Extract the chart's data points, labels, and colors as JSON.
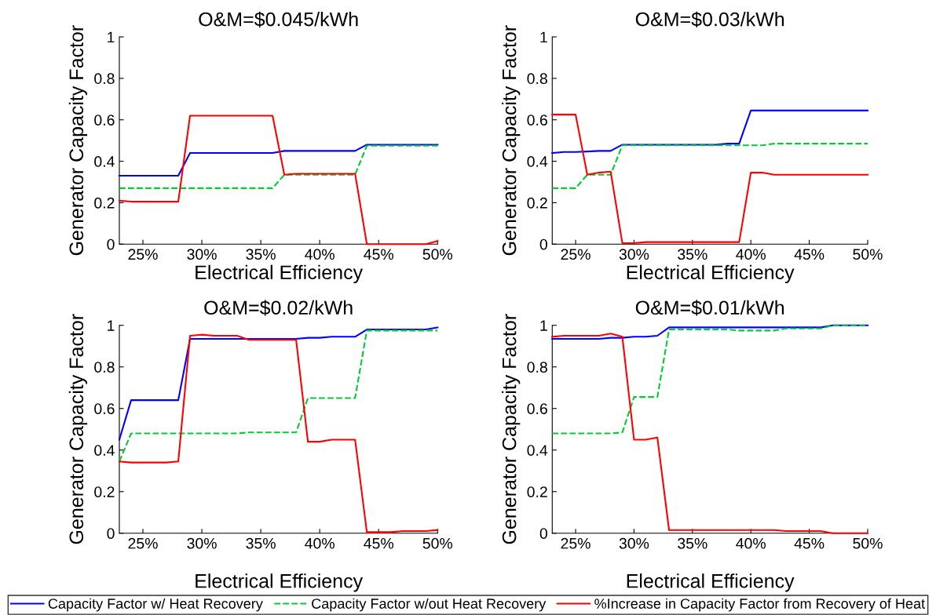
{
  "chart_data": [
    {
      "type": "line",
      "title": "O&M=$0.045/kWh",
      "xlabel": "Electrical Efficiency",
      "ylabel": "Generator Capacity Factor",
      "legend": "bottom",
      "x": [
        23,
        24,
        25,
        26,
        27,
        28,
        29,
        30,
        31,
        32,
        33,
        34,
        35,
        36,
        37,
        38,
        39,
        40,
        41,
        42,
        43,
        44,
        45,
        46,
        47,
        48,
        49,
        50
      ],
      "xlim": [
        23,
        50
      ],
      "xticks": [
        {
          "value": 25,
          "label": "25%"
        },
        {
          "value": 30,
          "label": "30%"
        },
        {
          "value": 35,
          "label": "35%"
        },
        {
          "value": 40,
          "label": "40%"
        },
        {
          "value": 45,
          "label": "45%"
        },
        {
          "value": 50,
          "label": "50%"
        }
      ],
      "ylim": [
        0,
        1
      ],
      "yticks": [
        0,
        0.2,
        0.4,
        0.6,
        0.8,
        1
      ],
      "series": [
        {
          "name": "Capacity Factor w/ Heat Recovery",
          "color": "#0000ff",
          "line_style": "solid",
          "values": [
            0.33,
            0.33,
            0.33,
            0.33,
            0.33,
            0.33,
            0.44,
            0.44,
            0.44,
            0.44,
            0.44,
            0.44,
            0.44,
            0.44,
            0.45,
            0.45,
            0.45,
            0.45,
            0.45,
            0.45,
            0.45,
            0.48,
            0.48,
            0.48,
            0.48,
            0.48,
            0.48,
            0.48
          ]
        },
        {
          "name": "Capacity Factor w/out Heat Recovery",
          "color": "#00cc33",
          "line_style": "dashed",
          "values": [
            0.27,
            0.27,
            0.27,
            0.27,
            0.27,
            0.27,
            0.27,
            0.27,
            0.27,
            0.27,
            0.27,
            0.27,
            0.27,
            0.27,
            0.335,
            0.335,
            0.335,
            0.335,
            0.335,
            0.335,
            0.335,
            0.475,
            0.475,
            0.475,
            0.475,
            0.475,
            0.475,
            0.475
          ]
        },
        {
          "name": "%Increase in Capacity Factor from Recovery of Heat",
          "color": "#ff0000",
          "line_style": "solid",
          "values": [
            0.21,
            0.205,
            0.205,
            0.205,
            0.205,
            0.205,
            0.62,
            0.62,
            0.62,
            0.62,
            0.62,
            0.62,
            0.62,
            0.62,
            0.335,
            0.34,
            0.34,
            0.34,
            0.34,
            0.34,
            0.34,
            0,
            0,
            0,
            0,
            0,
            0,
            0.015
          ]
        }
      ]
    },
    {
      "type": "line",
      "title": "O&M=$0.03/kWh",
      "xlabel": "Electrical Efficiency",
      "ylabel": "Generator Capacity Factor",
      "x": [
        23,
        24,
        25,
        26,
        27,
        28,
        29,
        30,
        31,
        32,
        33,
        34,
        35,
        36,
        37,
        38,
        39,
        40,
        41,
        42,
        43,
        44,
        45,
        46,
        47,
        48,
        49,
        50
      ],
      "xlim": [
        23,
        50
      ],
      "xticks": [
        {
          "value": 25,
          "label": "25%"
        },
        {
          "value": 30,
          "label": "30%"
        },
        {
          "value": 35,
          "label": "35%"
        },
        {
          "value": 40,
          "label": "40%"
        },
        {
          "value": 45,
          "label": "45%"
        },
        {
          "value": 50,
          "label": "50%"
        }
      ],
      "ylim": [
        0,
        1
      ],
      "yticks": [
        0,
        0.2,
        0.4,
        0.6,
        0.8,
        1
      ],
      "series": [
        {
          "color": "#0000ff",
          "line_style": "solid",
          "values": [
            0.44,
            0.445,
            0.445,
            0.447,
            0.45,
            0.45,
            0.48,
            0.48,
            0.48,
            0.48,
            0.48,
            0.48,
            0.48,
            0.48,
            0.48,
            0.485,
            0.485,
            0.645,
            0.645,
            0.645,
            0.645,
            0.645,
            0.645,
            0.645,
            0.645,
            0.645,
            0.645,
            0.645
          ]
        },
        {
          "color": "#00cc33",
          "line_style": "dashed",
          "values": [
            0.27,
            0.27,
            0.27,
            0.335,
            0.335,
            0.335,
            0.477,
            0.477,
            0.477,
            0.477,
            0.477,
            0.477,
            0.477,
            0.477,
            0.477,
            0.477,
            0.477,
            0.477,
            0.477,
            0.485,
            0.485,
            0.485,
            0.485,
            0.485,
            0.485,
            0.485,
            0.485,
            0.485
          ]
        },
        {
          "color": "#ff0000",
          "line_style": "solid",
          "values": [
            0.625,
            0.625,
            0.625,
            0.335,
            0.345,
            0.35,
            0.005,
            0.005,
            0.01,
            0.01,
            0.01,
            0.01,
            0.01,
            0.01,
            0.01,
            0.01,
            0.01,
            0.345,
            0.345,
            0.335,
            0.335,
            0.335,
            0.335,
            0.335,
            0.335,
            0.335,
            0.335,
            0.335
          ]
        }
      ]
    },
    {
      "type": "line",
      "title": "O&M=$0.02/kWh",
      "xlabel": "Electrical Efficiency",
      "ylabel": "Generator Capacity Factor",
      "x": [
        23,
        24,
        25,
        26,
        27,
        28,
        29,
        30,
        31,
        32,
        33,
        34,
        35,
        36,
        37,
        38,
        39,
        40,
        41,
        42,
        43,
        44,
        45,
        46,
        47,
        48,
        49,
        50
      ],
      "xlim": [
        23,
        50
      ],
      "xticks": [
        {
          "value": 25,
          "label": "25%"
        },
        {
          "value": 30,
          "label": "30%"
        },
        {
          "value": 35,
          "label": "35%"
        },
        {
          "value": 40,
          "label": "40%"
        },
        {
          "value": 45,
          "label": "45%"
        },
        {
          "value": 50,
          "label": "50%"
        }
      ],
      "ylim": [
        0,
        1
      ],
      "yticks": [
        0,
        0.2,
        0.4,
        0.6,
        0.8,
        1
      ],
      "series": [
        {
          "color": "#0000ff",
          "line_style": "solid",
          "values": [
            0.45,
            0.64,
            0.64,
            0.64,
            0.64,
            0.64,
            0.935,
            0.935,
            0.935,
            0.935,
            0.935,
            0.935,
            0.935,
            0.935,
            0.935,
            0.935,
            0.94,
            0.94,
            0.945,
            0.945,
            0.945,
            0.98,
            0.98,
            0.98,
            0.98,
            0.98,
            0.98,
            0.99
          ]
        },
        {
          "color": "#00cc33",
          "line_style": "dashed",
          "values": [
            0.345,
            0.48,
            0.48,
            0.48,
            0.48,
            0.48,
            0.48,
            0.48,
            0.48,
            0.48,
            0.48,
            0.485,
            0.485,
            0.485,
            0.485,
            0.485,
            0.65,
            0.65,
            0.65,
            0.65,
            0.65,
            0.975,
            0.975,
            0.975,
            0.975,
            0.975,
            0.975,
            0.975
          ]
        },
        {
          "color": "#ff0000",
          "line_style": "solid",
          "values": [
            0.345,
            0.34,
            0.34,
            0.34,
            0.34,
            0.345,
            0.95,
            0.955,
            0.95,
            0.95,
            0.95,
            0.93,
            0.93,
            0.93,
            0.93,
            0.93,
            0.44,
            0.44,
            0.45,
            0.45,
            0.45,
            0.005,
            0.005,
            0.005,
            0.01,
            0.01,
            0.01,
            0.015
          ]
        }
      ]
    },
    {
      "type": "line",
      "title": "O&M=$0.01/kWh",
      "xlabel": "Electrical Efficiency",
      "ylabel": "Generator Capacity Factor",
      "x": [
        23,
        24,
        25,
        26,
        27,
        28,
        29,
        30,
        31,
        32,
        33,
        34,
        35,
        36,
        37,
        38,
        39,
        40,
        41,
        42,
        43,
        44,
        45,
        46,
        47,
        48,
        49,
        50
      ],
      "xlim": [
        23,
        50
      ],
      "xticks": [
        {
          "value": 25,
          "label": "25%"
        },
        {
          "value": 30,
          "label": "30%"
        },
        {
          "value": 35,
          "label": "35%"
        },
        {
          "value": 40,
          "label": "40%"
        },
        {
          "value": 45,
          "label": "45%"
        },
        {
          "value": 50,
          "label": "50%"
        }
      ],
      "ylim": [
        0,
        1
      ],
      "yticks": [
        0,
        0.2,
        0.4,
        0.6,
        0.8,
        1
      ],
      "series": [
        {
          "color": "#0000ff",
          "line_style": "solid",
          "values": [
            0.935,
            0.935,
            0.935,
            0.935,
            0.935,
            0.94,
            0.94,
            0.945,
            0.945,
            0.95,
            0.99,
            0.99,
            0.99,
            0.99,
            0.99,
            0.99,
            0.99,
            0.99,
            0.99,
            0.99,
            0.99,
            0.99,
            0.99,
            0.99,
            1,
            1,
            1,
            1
          ]
        },
        {
          "color": "#00cc33",
          "line_style": "dashed",
          "values": [
            0.48,
            0.48,
            0.48,
            0.48,
            0.48,
            0.48,
            0.485,
            0.655,
            0.655,
            0.655,
            0.98,
            0.98,
            0.98,
            0.98,
            0.98,
            0.98,
            0.975,
            0.975,
            0.975,
            0.975,
            0.985,
            0.985,
            0.985,
            0.985,
            1,
            1,
            1,
            1
          ]
        },
        {
          "color": "#ff0000",
          "line_style": "solid",
          "values": [
            0.945,
            0.95,
            0.95,
            0.95,
            0.95,
            0.96,
            0.945,
            0.45,
            0.45,
            0.46,
            0.015,
            0.015,
            0.015,
            0.015,
            0.015,
            0.015,
            0.015,
            0.015,
            0.015,
            0.015,
            0.01,
            0.01,
            0.01,
            0.01,
            0,
            0,
            0,
            0
          ]
        }
      ]
    }
  ]
}
